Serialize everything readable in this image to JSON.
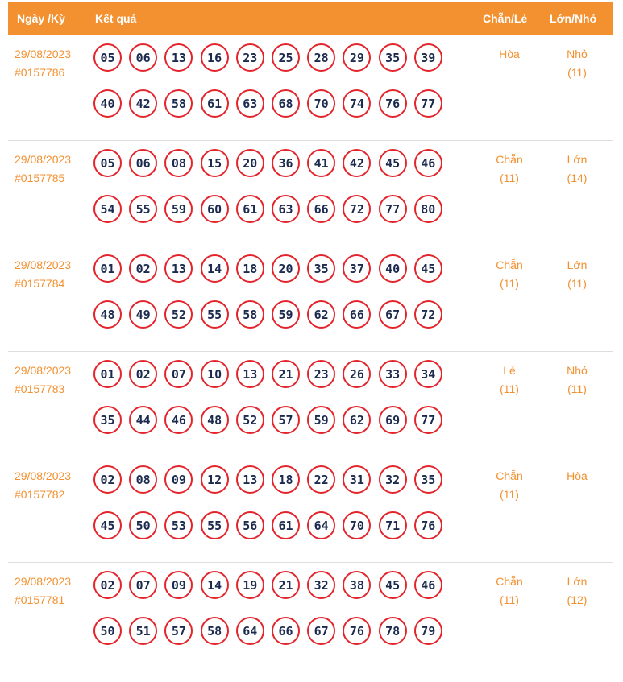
{
  "header": {
    "date_col": "Ngày /Kỳ",
    "result_col": "Kết quả",
    "even_odd_col": "Chẵn/Lẻ",
    "big_small_col": "Lớn/Nhỏ"
  },
  "colors": {
    "accent": "#f39130",
    "ball_border": "#e3242b",
    "ball_text": "#1b2a4e"
  },
  "draws": [
    {
      "date": "29/08/2023",
      "id": "#0157786",
      "numbers": [
        "05",
        "06",
        "13",
        "16",
        "23",
        "25",
        "28",
        "29",
        "35",
        "39",
        "40",
        "42",
        "58",
        "61",
        "63",
        "68",
        "70",
        "74",
        "76",
        "77"
      ],
      "even_odd": "Hòa",
      "even_odd_count": "",
      "big_small": "Nhỏ",
      "big_small_count": "(11)"
    },
    {
      "date": "29/08/2023",
      "id": "#0157785",
      "numbers": [
        "05",
        "06",
        "08",
        "15",
        "20",
        "36",
        "41",
        "42",
        "45",
        "46",
        "54",
        "55",
        "59",
        "60",
        "61",
        "63",
        "66",
        "72",
        "77",
        "80"
      ],
      "even_odd": "Chẵn",
      "even_odd_count": "(11)",
      "big_small": "Lớn",
      "big_small_count": "(14)"
    },
    {
      "date": "29/08/2023",
      "id": "#0157784",
      "numbers": [
        "01",
        "02",
        "13",
        "14",
        "18",
        "20",
        "35",
        "37",
        "40",
        "45",
        "48",
        "49",
        "52",
        "55",
        "58",
        "59",
        "62",
        "66",
        "67",
        "72"
      ],
      "even_odd": "Chẵn",
      "even_odd_count": "(11)",
      "big_small": "Lớn",
      "big_small_count": "(11)"
    },
    {
      "date": "29/08/2023",
      "id": "#0157783",
      "numbers": [
        "01",
        "02",
        "07",
        "10",
        "13",
        "21",
        "23",
        "26",
        "33",
        "34",
        "35",
        "44",
        "46",
        "48",
        "52",
        "57",
        "59",
        "62",
        "69",
        "77"
      ],
      "even_odd": "Lẻ",
      "even_odd_count": "(11)",
      "big_small": "Nhỏ",
      "big_small_count": "(11)"
    },
    {
      "date": "29/08/2023",
      "id": "#0157782",
      "numbers": [
        "02",
        "08",
        "09",
        "12",
        "13",
        "18",
        "22",
        "31",
        "32",
        "35",
        "45",
        "50",
        "53",
        "55",
        "56",
        "61",
        "64",
        "70",
        "71",
        "76"
      ],
      "even_odd": "Chẵn",
      "even_odd_count": "(11)",
      "big_small": "Hòa",
      "big_small_count": ""
    },
    {
      "date": "29/08/2023",
      "id": "#0157781",
      "numbers": [
        "02",
        "07",
        "09",
        "14",
        "19",
        "21",
        "32",
        "38",
        "45",
        "46",
        "50",
        "51",
        "57",
        "58",
        "64",
        "66",
        "67",
        "76",
        "78",
        "79"
      ],
      "even_odd": "Chẵn",
      "even_odd_count": "(11)",
      "big_small": "Lớn",
      "big_small_count": "(12)"
    }
  ]
}
